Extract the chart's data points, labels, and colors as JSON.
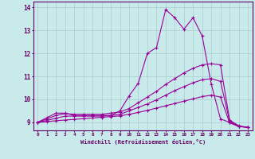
{
  "x": [
    0,
    1,
    2,
    3,
    4,
    5,
    6,
    7,
    8,
    9,
    10,
    11,
    12,
    13,
    14,
    15,
    16,
    17,
    18,
    19,
    20,
    21,
    22,
    23
  ],
  "line1": [
    9.0,
    9.2,
    9.4,
    9.4,
    9.3,
    9.3,
    9.3,
    9.3,
    9.3,
    9.5,
    10.15,
    10.7,
    12.0,
    12.25,
    13.9,
    13.55,
    13.05,
    13.55,
    12.75,
    10.65,
    9.15,
    9.0,
    8.82,
    8.78
  ],
  "line2": [
    9.0,
    9.15,
    9.3,
    9.38,
    9.35,
    9.35,
    9.35,
    9.35,
    9.4,
    9.45,
    9.6,
    9.85,
    10.1,
    10.35,
    10.65,
    10.9,
    11.15,
    11.35,
    11.5,
    11.55,
    11.5,
    9.1,
    8.85,
    8.78
  ],
  "line3": [
    9.0,
    9.08,
    9.18,
    9.27,
    9.27,
    9.27,
    9.27,
    9.27,
    9.3,
    9.35,
    9.5,
    9.65,
    9.8,
    9.98,
    10.18,
    10.38,
    10.55,
    10.72,
    10.85,
    10.9,
    10.78,
    9.05,
    8.83,
    8.78
  ],
  "line4": [
    9.0,
    9.03,
    9.07,
    9.1,
    9.13,
    9.16,
    9.19,
    9.22,
    9.25,
    9.28,
    9.35,
    9.43,
    9.52,
    9.62,
    9.72,
    9.82,
    9.92,
    10.02,
    10.12,
    10.18,
    10.1,
    8.98,
    8.82,
    8.78
  ],
  "bg_color": "#c8eaea",
  "line_color": "#990099",
  "grid_color": "#aacccc",
  "axis_color": "#660066",
  "xlabel": "Windchill (Refroidissement éolien,°C)",
  "xlim": [
    -0.5,
    23.5
  ],
  "ylim": [
    8.65,
    14.25
  ],
  "yticks": [
    9,
    10,
    11,
    12,
    13,
    14
  ],
  "xticks": [
    0,
    1,
    2,
    3,
    4,
    5,
    6,
    7,
    8,
    9,
    10,
    11,
    12,
    13,
    14,
    15,
    16,
    17,
    18,
    19,
    20,
    21,
    22,
    23
  ]
}
